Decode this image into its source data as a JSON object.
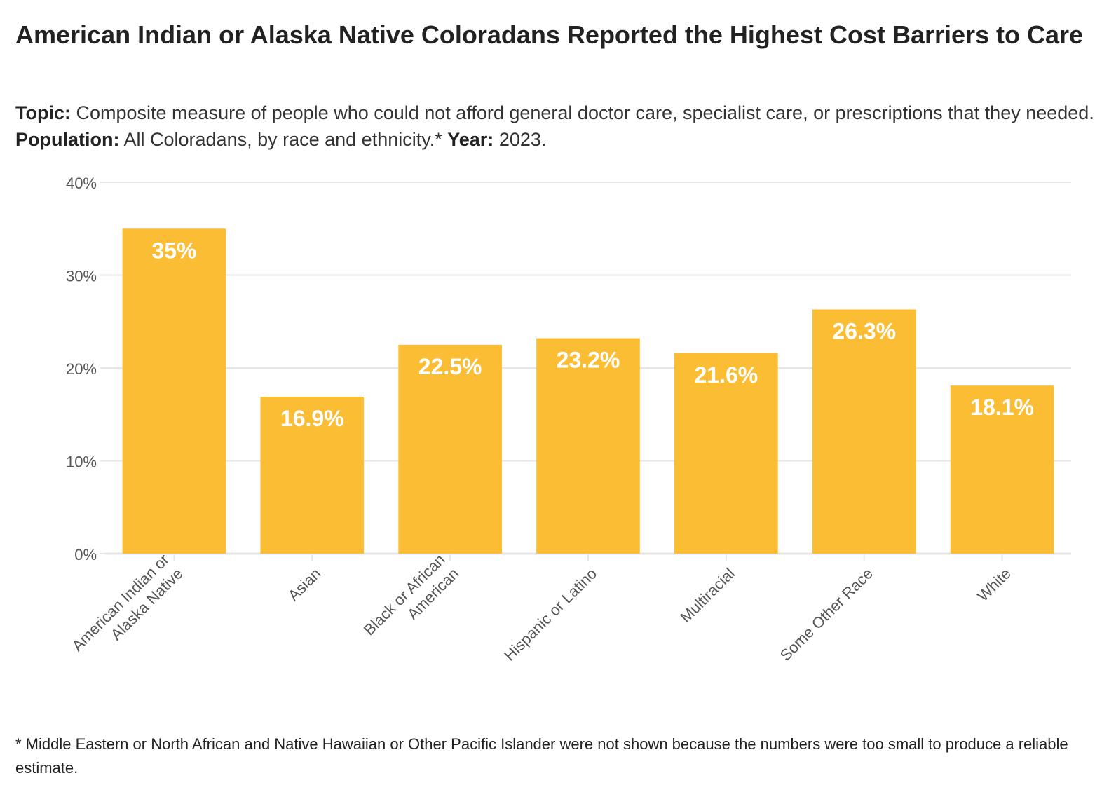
{
  "title": "American Indian or Alaska Native Coloradans Reported the Highest Cost Barriers to Care",
  "subtitle": {
    "topic_label": "Topic:",
    "topic_text": " Composite measure of people who could not afford general doctor care, specialist care, or prescriptions that they needed. ",
    "population_label": "Population:",
    "population_text": " All Coloradans, by race and ethnicity.* ",
    "year_label": "Year:",
    "year_text": " 2023."
  },
  "footnote": "* Middle Eastern or North African and Native Hawaiian or Other Pacific Islander were not shown because the numbers were too small to produce a reliable estimate.",
  "colors": {
    "bar": "#fbbd33",
    "grid": "#e6e6e6",
    "axis_text": "#555555",
    "label": "#ffffff"
  },
  "chart_data": {
    "type": "bar",
    "categories": [
      [
        "American Indian or",
        "Alaska Native"
      ],
      [
        "Asian"
      ],
      [
        "Black or African",
        "American"
      ],
      [
        "Hispanic or Latino"
      ],
      [
        "Multiracial"
      ],
      [
        "Some Other Race"
      ],
      [
        "White"
      ]
    ],
    "values": [
      35,
      16.9,
      22.5,
      23.2,
      21.6,
      26.3,
      18.1
    ],
    "data_labels": [
      "35%",
      "16.9%",
      "22.5%",
      "23.2%",
      "21.6%",
      "26.3%",
      "18.1%"
    ],
    "yticks": [
      0,
      10,
      20,
      30,
      40
    ],
    "ytick_labels": [
      "0%",
      "10%",
      "20%",
      "30%",
      "40%"
    ],
    "ylim": [
      0,
      40
    ],
    "grid": true,
    "legend": "none"
  }
}
